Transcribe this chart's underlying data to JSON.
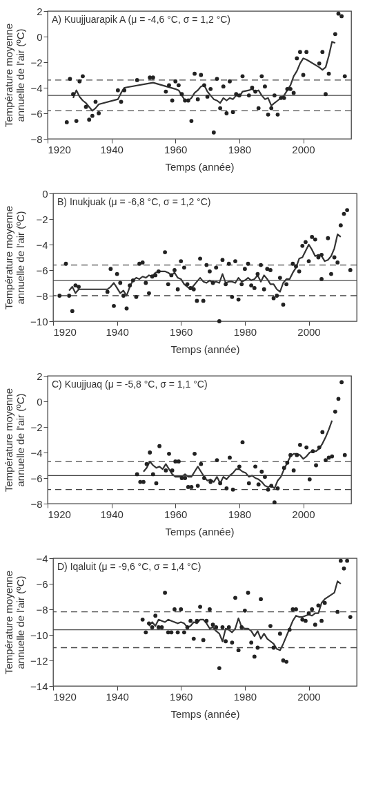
{
  "chart_data": [
    {
      "type": "scatter",
      "xlabel": "Temps (année)",
      "ylabel": "Température moyenne\nannuelle de l'air (ºC)",
      "xlim": [
        1920,
        2015
      ],
      "xticks": [
        1920,
        1940,
        1960,
        1980,
        2000
      ],
      "ylim": [
        -8,
        2
      ],
      "yticks": [
        -8,
        -6,
        -4,
        -2,
        0,
        2
      ],
      "annotations": [
        "A) Kuujjuarapik A (μ = -4,6 °C, σ = 1,2 °C)"
      ],
      "ref_lines": [
        {
          "axis": "y",
          "value": -4.6,
          "line_style": "solid",
          "color": "#444444"
        },
        {
          "axis": "y",
          "value": -3.4,
          "line_style": "dashed",
          "color": "#444444"
        },
        {
          "axis": "y",
          "value": -5.8,
          "line_style": "dashed",
          "color": "#444444"
        }
      ],
      "series": [
        {
          "type": "scatter",
          "marker": "circle",
          "color": "#222222",
          "x": [
            1926,
            1927,
            1928,
            1929,
            1930,
            1931,
            1932,
            1933,
            1934,
            1935,
            1936,
            1942,
            1943,
            1944,
            1948,
            1952,
            1953,
            1957,
            1958,
            1959,
            1960,
            1961,
            1962,
            1963,
            1964,
            1965,
            1966,
            1967,
            1968,
            1969,
            1970,
            1971,
            1972,
            1973,
            1974,
            1975,
            1976,
            1977,
            1978,
            1979,
            1980,
            1981,
            1983,
            1984,
            1985,
            1986,
            1987,
            1988,
            1989,
            1990,
            1991,
            1992,
            1993,
            1994,
            1995,
            1996,
            1997,
            1998,
            1999,
            2000,
            2001,
            2005,
            2006,
            2007,
            2008,
            2010,
            2011,
            2012,
            2013
          ],
          "values": [
            -6.7,
            -3.3,
            -4.5,
            -6.6,
            -3.5,
            -3.1,
            -5.5,
            -6.5,
            -6.2,
            -5.1,
            -6.0,
            -4.2,
            -5.1,
            -4.2,
            -3.4,
            -3.2,
            -3.2,
            -4.3,
            -3.8,
            -5.0,
            -3.5,
            -3.8,
            -4.5,
            -5.0,
            -5.0,
            -6.6,
            -2.9,
            -4.9,
            -3.0,
            -3.8,
            -4.7,
            -4.1,
            -7.5,
            -3.3,
            -5.6,
            -3.9,
            -6.0,
            -3.5,
            -5.9,
            -4.5,
            -4.6,
            -3.1,
            -4.6,
            -4.0,
            -4.3,
            -5.6,
            -3.1,
            -3.9,
            -6.1,
            -5.6,
            -4.6,
            -6.1,
            -4.8,
            -4.8,
            -4.1,
            -4.1,
            -4.4,
            -1.7,
            -1.2,
            -3.0,
            -1.2,
            -2.1,
            -1.2,
            -4.5,
            -2.9,
            0.2,
            1.8,
            1.6,
            -3.1
          ]
        },
        {
          "type": "line",
          "color": "#333333",
          "line_style": "solid",
          "x": [
            1928,
            1929,
            1930,
            1931,
            1932,
            1933,
            1934,
            1935,
            1936,
            1942,
            1943,
            1944,
            1953,
            1960,
            1961,
            1962,
            1963,
            1964,
            1965,
            1966,
            1967,
            1968,
            1969,
            1970,
            1971,
            1972,
            1973,
            1974,
            1975,
            1976,
            1977,
            1978,
            1979,
            1980,
            1981,
            1983,
            1984,
            1985,
            1986,
            1987,
            1988,
            1989,
            1990,
            1991,
            1992,
            1993,
            1994,
            1995,
            1996,
            1997,
            1998,
            1999,
            2000,
            2001,
            2005,
            2006,
            2007,
            2008,
            2009,
            2010
          ],
          "values": [
            -4.8,
            -4.2,
            -4.7,
            -5.0,
            -5.2,
            -5.5,
            -5.8,
            -5.6,
            -5.3,
            -4.9,
            -4.4,
            -4.0,
            -3.6,
            -4.1,
            -4.2,
            -4.6,
            -5.0,
            -5.0,
            -4.8,
            -4.4,
            -4.2,
            -3.9,
            -3.8,
            -4.3,
            -4.6,
            -4.9,
            -5.0,
            -5.2,
            -4.8,
            -5.0,
            -4.8,
            -4.9,
            -4.6,
            -4.7,
            -4.3,
            -4.2,
            -4.1,
            -4.3,
            -4.2,
            -4.6,
            -4.9,
            -4.8,
            -5.4,
            -5.2,
            -5.0,
            -4.8,
            -4.6,
            -4.2,
            -3.8,
            -3.1,
            -2.7,
            -2.1,
            -1.7,
            -1.8,
            -2.4,
            -2.6,
            -2.4,
            -1.5,
            -0.4,
            -0.5
          ]
        }
      ]
    },
    {
      "type": "scatter",
      "xlabel": "Temps (année)",
      "ylabel": "Température moyenne\nannuelle de l'air (ºC)",
      "xlim": [
        1920,
        2015
      ],
      "xticks": [
        1920,
        1940,
        1960,
        1980,
        2000
      ],
      "ylim": [
        -10,
        0
      ],
      "yticks": [
        -10,
        -8,
        -6,
        -4,
        -2,
        0
      ],
      "annotations": [
        "B) Inukjuak (μ = -6,8 °C, σ = 1,2 °C)"
      ],
      "ref_lines": [
        {
          "axis": "y",
          "value": -6.8,
          "line_style": "solid",
          "color": "#444444"
        },
        {
          "axis": "y",
          "value": -5.6,
          "line_style": "dashed",
          "color": "#444444"
        },
        {
          "axis": "y",
          "value": -8.0,
          "line_style": "dashed",
          "color": "#444444"
        }
      ],
      "series": [
        {
          "type": "scatter",
          "marker": "circle",
          "color": "#222222",
          "x": [
            1922,
            1924,
            1925,
            1926,
            1927,
            1928,
            1937,
            1938,
            1939,
            1940,
            1941,
            1942,
            1943,
            1944,
            1945,
            1946,
            1947,
            1948,
            1949,
            1950,
            1951,
            1952,
            1953,
            1955,
            1956,
            1957,
            1958,
            1959,
            1960,
            1961,
            1962,
            1963,
            1964,
            1965,
            1966,
            1967,
            1968,
            1969,
            1970,
            1971,
            1972,
            1973,
            1974,
            1975,
            1976,
            1977,
            1978,
            1979,
            1980,
            1981,
            1982,
            1983,
            1984,
            1985,
            1986,
            1987,
            1988,
            1989,
            1990,
            1991,
            1992,
            1993,
            1995,
            1996,
            1997,
            1998,
            1999,
            2000,
            2001,
            2002,
            2003,
            2004,
            2004,
            2006,
            2007,
            2008,
            2009,
            2010,
            2011,
            2012,
            2013
          ],
          "values": [
            -8.0,
            -5.5,
            -8.0,
            -9.2,
            -7.2,
            -7.3,
            -7.7,
            -5.9,
            -8.8,
            -6.3,
            -7.0,
            -8.0,
            -9.0,
            -7.2,
            -6.8,
            -8.1,
            -5.5,
            -5.4,
            -7.0,
            -7.8,
            -6.5,
            -6.4,
            -6.1,
            -4.6,
            -7.1,
            -6.4,
            -6.0,
            -7.5,
            -5.3,
            -5.8,
            -7.1,
            -7.4,
            -7.5,
            -8.4,
            -5.1,
            -8.4,
            -5.6,
            -6.1,
            -7.0,
            -5.8,
            -10.0,
            -5.2,
            -7.1,
            -5.5,
            -8.1,
            -5.3,
            -8.3,
            -7.1,
            -5.9,
            -5.5,
            -7.2,
            -7.4,
            -6.3,
            -5.6,
            -7.5,
            -5.9,
            -6.0,
            -8.2,
            -8.0,
            -6.6,
            -8.7,
            -7.1,
            -5.5,
            -5.7,
            -6.1,
            -4.1,
            -3.8,
            -5.3,
            -3.4,
            -3.6,
            -5.0,
            -4.8,
            -6.7,
            -3.5,
            -6.3,
            -5.0,
            -5.4,
            -2.5,
            -1.6,
            -1.3,
            -6.0
          ]
        },
        {
          "type": "line",
          "color": "#333333",
          "line_style": "solid",
          "x": [
            1925,
            1926,
            1927,
            1928,
            1937,
            1938,
            1939,
            1940,
            1941,
            1942,
            1943,
            1944,
            1945,
            1946,
            1947,
            1948,
            1949,
            1950,
            1951,
            1952,
            1953,
            1954,
            1955,
            1956,
            1957,
            1958,
            1959,
            1960,
            1961,
            1962,
            1963,
            1964,
            1965,
            1966,
            1967,
            1968,
            1969,
            1970,
            1971,
            1972,
            1973,
            1974,
            1975,
            1976,
            1977,
            1978,
            1979,
            1980,
            1981,
            1982,
            1983,
            1984,
            1985,
            1986,
            1987,
            1988,
            1989,
            1990,
            1991,
            1992,
            1993,
            1994,
            1995,
            1996,
            1997,
            1998,
            1999,
            2000,
            2001,
            2002,
            2003,
            2004,
            2005,
            2006,
            2007,
            2008,
            2009,
            2010
          ],
          "values": [
            -7.6,
            -7.3,
            -7.8,
            -7.5,
            -7.5,
            -7.3,
            -7.0,
            -7.4,
            -7.8,
            -7.6,
            -8.0,
            -7.3,
            -6.8,
            -6.6,
            -6.7,
            -6.5,
            -6.6,
            -6.4,
            -6.5,
            -6.2,
            -6.1,
            -6.1,
            -6.1,
            -6.2,
            -6.4,
            -6.2,
            -6.6,
            -6.7,
            -7.1,
            -7.3,
            -7.5,
            -7.2,
            -6.9,
            -6.6,
            -6.9,
            -7.0,
            -6.8,
            -7.0,
            -6.9,
            -7.0,
            -6.3,
            -7.0,
            -6.9,
            -6.9,
            -7.0,
            -6.6,
            -6.9,
            -6.8,
            -6.6,
            -6.8,
            -6.7,
            -6.4,
            -6.9,
            -6.4,
            -6.7,
            -7.1,
            -7.1,
            -7.5,
            -7.7,
            -7.0,
            -6.7,
            -6.7,
            -6.2,
            -5.8,
            -5.1,
            -5.0,
            -4.5,
            -4.0,
            -4.4,
            -4.9,
            -4.8,
            -4.9,
            -5.3,
            -5.2,
            -4.9,
            -4.3,
            -3.2,
            -3.4
          ]
        }
      ]
    },
    {
      "type": "scatter",
      "xlabel": "Temps (année)",
      "ylabel": "Température moyenne\nannuelle de l'air (ºC)",
      "xlim": [
        1920,
        2015
      ],
      "xticks": [
        1920,
        1940,
        1960,
        1980,
        2000
      ],
      "ylim": [
        -8,
        2
      ],
      "yticks": [
        -8,
        -6,
        -4,
        -2,
        0,
        2
      ],
      "annotations": [
        "C) Kuujjuaq (μ = -5,8 °C, σ = 1,1 °C)"
      ],
      "ref_lines": [
        {
          "axis": "y",
          "value": -5.8,
          "line_style": "solid",
          "color": "#444444"
        },
        {
          "axis": "y",
          "value": -4.7,
          "line_style": "dashed",
          "color": "#444444"
        },
        {
          "axis": "y",
          "value": -6.9,
          "line_style": "dashed",
          "color": "#444444"
        }
      ],
      "series": [
        {
          "type": "scatter",
          "marker": "circle",
          "color": "#222222",
          "x": [
            1948,
            1949,
            1950,
            1951,
            1952,
            1953,
            1954,
            1955,
            1957,
            1958,
            1959,
            1960,
            1961,
            1962,
            1963,
            1964,
            1965,
            1966,
            1967,
            1968,
            1969,
            1971,
            1973,
            1974,
            1976,
            1977,
            1978,
            1980,
            1981,
            1983,
            1985,
            1986,
            1987,
            1988,
            1989,
            1990,
            1991,
            1992,
            1994,
            1995,
            1996,
            1997,
            1998,
            1999,
            2001,
            2002,
            2003,
            2004,
            2005,
            2006,
            2007,
            2008,
            2009,
            2010,
            2011,
            2012,
            2013
          ],
          "values": [
            -5.7,
            -6.3,
            -6.3,
            -4.9,
            -4.0,
            -5.7,
            -6.4,
            -3.5,
            -5.4,
            -4.1,
            -5.4,
            -4.7,
            -4.7,
            -6.0,
            -6.0,
            -6.7,
            -6.7,
            -4.1,
            -6.6,
            -4.9,
            -6.0,
            -6.3,
            -4.6,
            -6.4,
            -6.8,
            -4.4,
            -6.9,
            -5.1,
            -3.2,
            -6.4,
            -5.1,
            -6.5,
            -5.5,
            -5.9,
            -6.9,
            -6.6,
            -7.9,
            -6.8,
            -5.2,
            -4.8,
            -4.2,
            -5.4,
            -4.2,
            -3.4,
            -3.6,
            -6.1,
            -3.9,
            -5.0,
            -3.6,
            -2.4,
            -4.6,
            -4.4,
            -4.3,
            -0.8,
            0.2,
            1.5,
            -4.2
          ]
        },
        {
          "type": "line",
          "color": "#333333",
          "line_style": "solid",
          "x": [
            1950,
            1951,
            1952,
            1953,
            1954,
            1955,
            1956,
            1957,
            1958,
            1959,
            1960,
            1961,
            1962,
            1963,
            1964,
            1965,
            1966,
            1967,
            1968,
            1969,
            1970,
            1971,
            1972,
            1973,
            1974,
            1975,
            1976,
            1977,
            1978,
            1979,
            1980,
            1981,
            1982,
            1983,
            1984,
            1985,
            1986,
            1987,
            1988,
            1989,
            1990,
            1991,
            1992,
            1993,
            1994,
            1995,
            1996,
            1997,
            1998,
            1999,
            2000,
            2001,
            2002,
            2003,
            2004,
            2005,
            2006,
            2007,
            2008,
            2009
          ],
          "values": [
            -5.5,
            -5.2,
            -4.7,
            -5.0,
            -5.2,
            -5.1,
            -5.3,
            -4.9,
            -5.3,
            -5.7,
            -5.9,
            -5.9,
            -5.9,
            -5.7,
            -5.9,
            -5.9,
            -5.5,
            -5.1,
            -5.5,
            -5.9,
            -6.2,
            -6.1,
            -6.3,
            -5.9,
            -6.4,
            -5.9,
            -6.1,
            -5.8,
            -5.6,
            -5.3,
            -5.3,
            -5.5,
            -5.6,
            -5.9,
            -5.8,
            -6.0,
            -6.1,
            -6.3,
            -6.6,
            -6.7,
            -6.6,
            -6.8,
            -6.2,
            -5.9,
            -5.3,
            -4.8,
            -4.3,
            -4.1,
            -4.1,
            -4.2,
            -4.5,
            -4.3,
            -4.0,
            -3.9,
            -3.9,
            -3.7,
            -3.3,
            -2.8,
            -2.2,
            -1.5
          ]
        }
      ]
    },
    {
      "type": "scatter",
      "xlabel": "Temps (année)",
      "ylabel": "Température moyenne\nannuelle de l'air (ºC)",
      "xlim": [
        1920,
        2015
      ],
      "xticks": [
        1920,
        1940,
        1960,
        1980,
        2000
      ],
      "ylim": [
        -14,
        -4
      ],
      "yticks": [
        -14,
        -12,
        -10,
        -8,
        -6,
        -4
      ],
      "annotations": [
        "D) Iqaluit (μ = -9,6 °C, σ = 1,4 °C)"
      ],
      "ref_lines": [
        {
          "axis": "y",
          "value": -9.6,
          "line_style": "solid",
          "color": "#444444"
        },
        {
          "axis": "y",
          "value": -8.2,
          "line_style": "dashed",
          "color": "#444444"
        },
        {
          "axis": "y",
          "value": -11.0,
          "line_style": "dashed",
          "color": "#444444"
        }
      ],
      "series": [
        {
          "type": "scatter",
          "marker": "circle",
          "color": "#222222",
          "x": [
            1948,
            1949,
            1950,
            1951,
            1952,
            1953,
            1954,
            1955,
            1956,
            1957,
            1958,
            1959,
            1960,
            1961,
            1962,
            1963,
            1964,
            1965,
            1966,
            1967,
            1968,
            1969,
            1970,
            1971,
            1972,
            1973,
            1974,
            1975,
            1976,
            1977,
            1978,
            1979,
            1980,
            1981,
            1982,
            1983,
            1984,
            1985,
            1988,
            1989,
            1991,
            1992,
            1993,
            1994,
            1995,
            1996,
            1998,
            1999,
            2000,
            2001,
            2002,
            2003,
            2004,
            2005,
            2009,
            2010,
            2011,
            2012,
            2013
          ],
          "values": [
            -8.8,
            -9.8,
            -9.1,
            -9.4,
            -8.5,
            -9.4,
            -9.4,
            -6.7,
            -9.8,
            -9.8,
            -8.0,
            -9.8,
            -8.0,
            -9.8,
            -9.4,
            -8.9,
            -10.3,
            -8.9,
            -7.8,
            -10.4,
            -8.9,
            -8.0,
            -9.2,
            -9.4,
            -12.6,
            -9.4,
            -10.5,
            -9.4,
            -10.6,
            -7.1,
            -11.2,
            -9.4,
            -8.1,
            -6.7,
            -10.6,
            -11.7,
            -11.0,
            -7.2,
            -9.3,
            -11.0,
            -9.9,
            -12.0,
            -12.1,
            -9.6,
            -8.0,
            -8.0,
            -8.8,
            -8.9,
            -8.3,
            -8.0,
            -9.2,
            -7.7,
            -8.9,
            -7.5,
            -8.2,
            -4.2,
            -4.8,
            -4.2,
            -8.6
          ]
        },
        {
          "type": "line",
          "color": "#333333",
          "line_style": "solid",
          "x": [
            1950,
            1951,
            1952,
            1953,
            1954,
            1955,
            1956,
            1957,
            1958,
            1959,
            1960,
            1961,
            1962,
            1963,
            1964,
            1965,
            1966,
            1967,
            1968,
            1969,
            1970,
            1971,
            1972,
            1973,
            1974,
            1975,
            1976,
            1977,
            1978,
            1979,
            1980,
            1981,
            1982,
            1983,
            1984,
            1985,
            1986,
            1987,
            1988,
            1989,
            1990,
            1991,
            1992,
            1993,
            1994,
            1995,
            1996,
            1997,
            1998,
            1999,
            2000,
            2001,
            2002,
            2003,
            2004,
            2005,
            2008,
            2009,
            2010
          ],
          "values": [
            -9.3,
            -9.0,
            -9.3,
            -8.8,
            -8.9,
            -9.0,
            -8.8,
            -8.9,
            -9.0,
            -9.1,
            -9.0,
            -9.1,
            -9.4,
            -9.3,
            -9.0,
            -9.1,
            -8.8,
            -8.8,
            -9.1,
            -9.5,
            -9.4,
            -9.7,
            -9.9,
            -10.5,
            -9.5,
            -9.6,
            -9.8,
            -9.5,
            -8.7,
            -9.4,
            -9.5,
            -9.5,
            -9.7,
            -10.1,
            -9.7,
            -10.3,
            -9.9,
            -10.3,
            -10.5,
            -10.7,
            -11.1,
            -11.2,
            -10.7,
            -10.1,
            -9.5,
            -8.9,
            -8.5,
            -8.6,
            -8.6,
            -8.5,
            -8.4,
            -8.5,
            -8.3,
            -8.3,
            -7.5,
            -7.2,
            -6.7,
            -5.8,
            -6.0
          ]
        }
      ]
    }
  ]
}
